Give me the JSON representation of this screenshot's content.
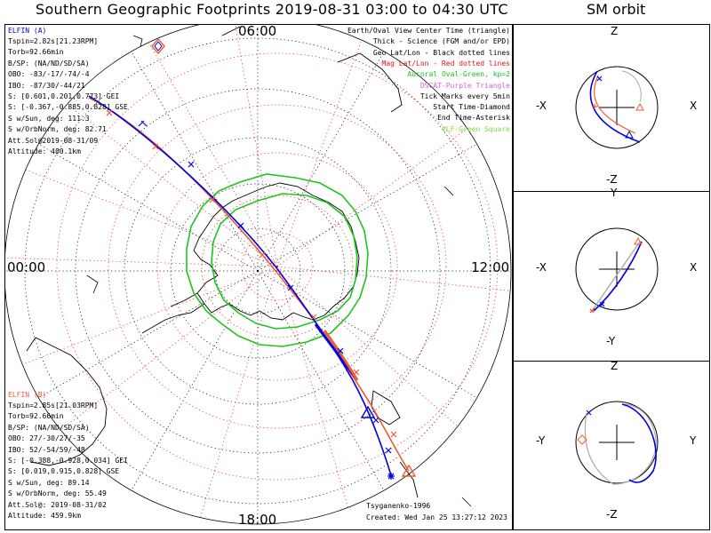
{
  "title": "Southern Geographic Footprints 2019-08-31 03:00 to 04:30 UTC",
  "sm_title": "SM orbit",
  "hours": {
    "top": "06:00",
    "left": "00:00",
    "right": "12:00",
    "bottom": "18:00"
  },
  "elfin_a": {
    "name": "ELFIN (A)",
    "lines": [
      "Tspin=2.82s[21.23RPM]",
      "Torb=92.66min",
      "B/SP: (NA/ND/SD/SA)",
      "OBO: -83/-17/-74/-4",
      "IBO: -87/30/-44/21",
      "S: [0.601,0.201,0.773] GEI",
      "S: [-0.367,-0.885,0.828] GSE",
      "S w/Sun, deg: 111.3",
      "S w/OrbNorm, deg: 82.71",
      "Att.Sol@2019-08-31/09",
      "Altitude: 480.1km"
    ]
  },
  "elfin_b": {
    "name": "ELFIN (B)",
    "lines": [
      "Tspin=2.85s[21.03RPM]",
      "Torb=92.66min",
      "B/SP: (NA/ND/SD/SA)",
      "OBO: 27/-30/27/-35",
      "IBO: 52/-54/59/-48",
      "S: [-0.388,-0.928,0.034] GEI",
      "S: [0.019,0.915,0.828] GSE",
      "S w/Sun, deg: 89.14",
      "S w/OrbNorm, deg: 55.49",
      "Att.Sol@: 2019-08-31/02",
      "Altitude: 459.9km"
    ]
  },
  "legend": [
    {
      "text": "Earth/Oval View Center Time (triangle)",
      "color": "#000000"
    },
    {
      "text": "Thick - Science (FGM and/or EPD)",
      "color": "#000000"
    },
    {
      "text": "Geo Lat/Lon - Black dotted lines",
      "color": "#000000"
    },
    {
      "text": "Mag Lat/Lon - Red dotted lines",
      "color": "#e8141a"
    },
    {
      "text": "Auroral Oval-Green, kp=2",
      "color": "#1fc41f"
    },
    {
      "text": "DSCAT-Purple Triangle",
      "color": "#d65fd6"
    },
    {
      "text": "Tick Marks every 5min",
      "color": "#000000"
    },
    {
      "text": "Start Time-Diamond",
      "color": "#000000"
    },
    {
      "text": "End Time-Asterisk",
      "color": "#000000"
    },
    {
      "text": "VLF-Green Square",
      "color": "#7ddc3a"
    }
  ],
  "credits": {
    "model": "Tsyganenko-1996",
    "created": "Created: Wed Jan 25 13:27:12 2023"
  },
  "sm_panels": [
    {
      "top": "Z",
      "bottom": "-Z",
      "left": "-X",
      "right": "X"
    },
    {
      "top": "Y",
      "bottom": "-Y",
      "left": "-X",
      "right": "X"
    },
    {
      "top": "Z",
      "bottom": "-Z",
      "left": "-Y",
      "right": "Y"
    }
  ],
  "colors": {
    "elfin_a": "#0000e0",
    "elfin_b": "#f05a32",
    "oval": "#1fc41f",
    "mag_grid": "#e8141a",
    "geo_grid": "#000000"
  }
}
